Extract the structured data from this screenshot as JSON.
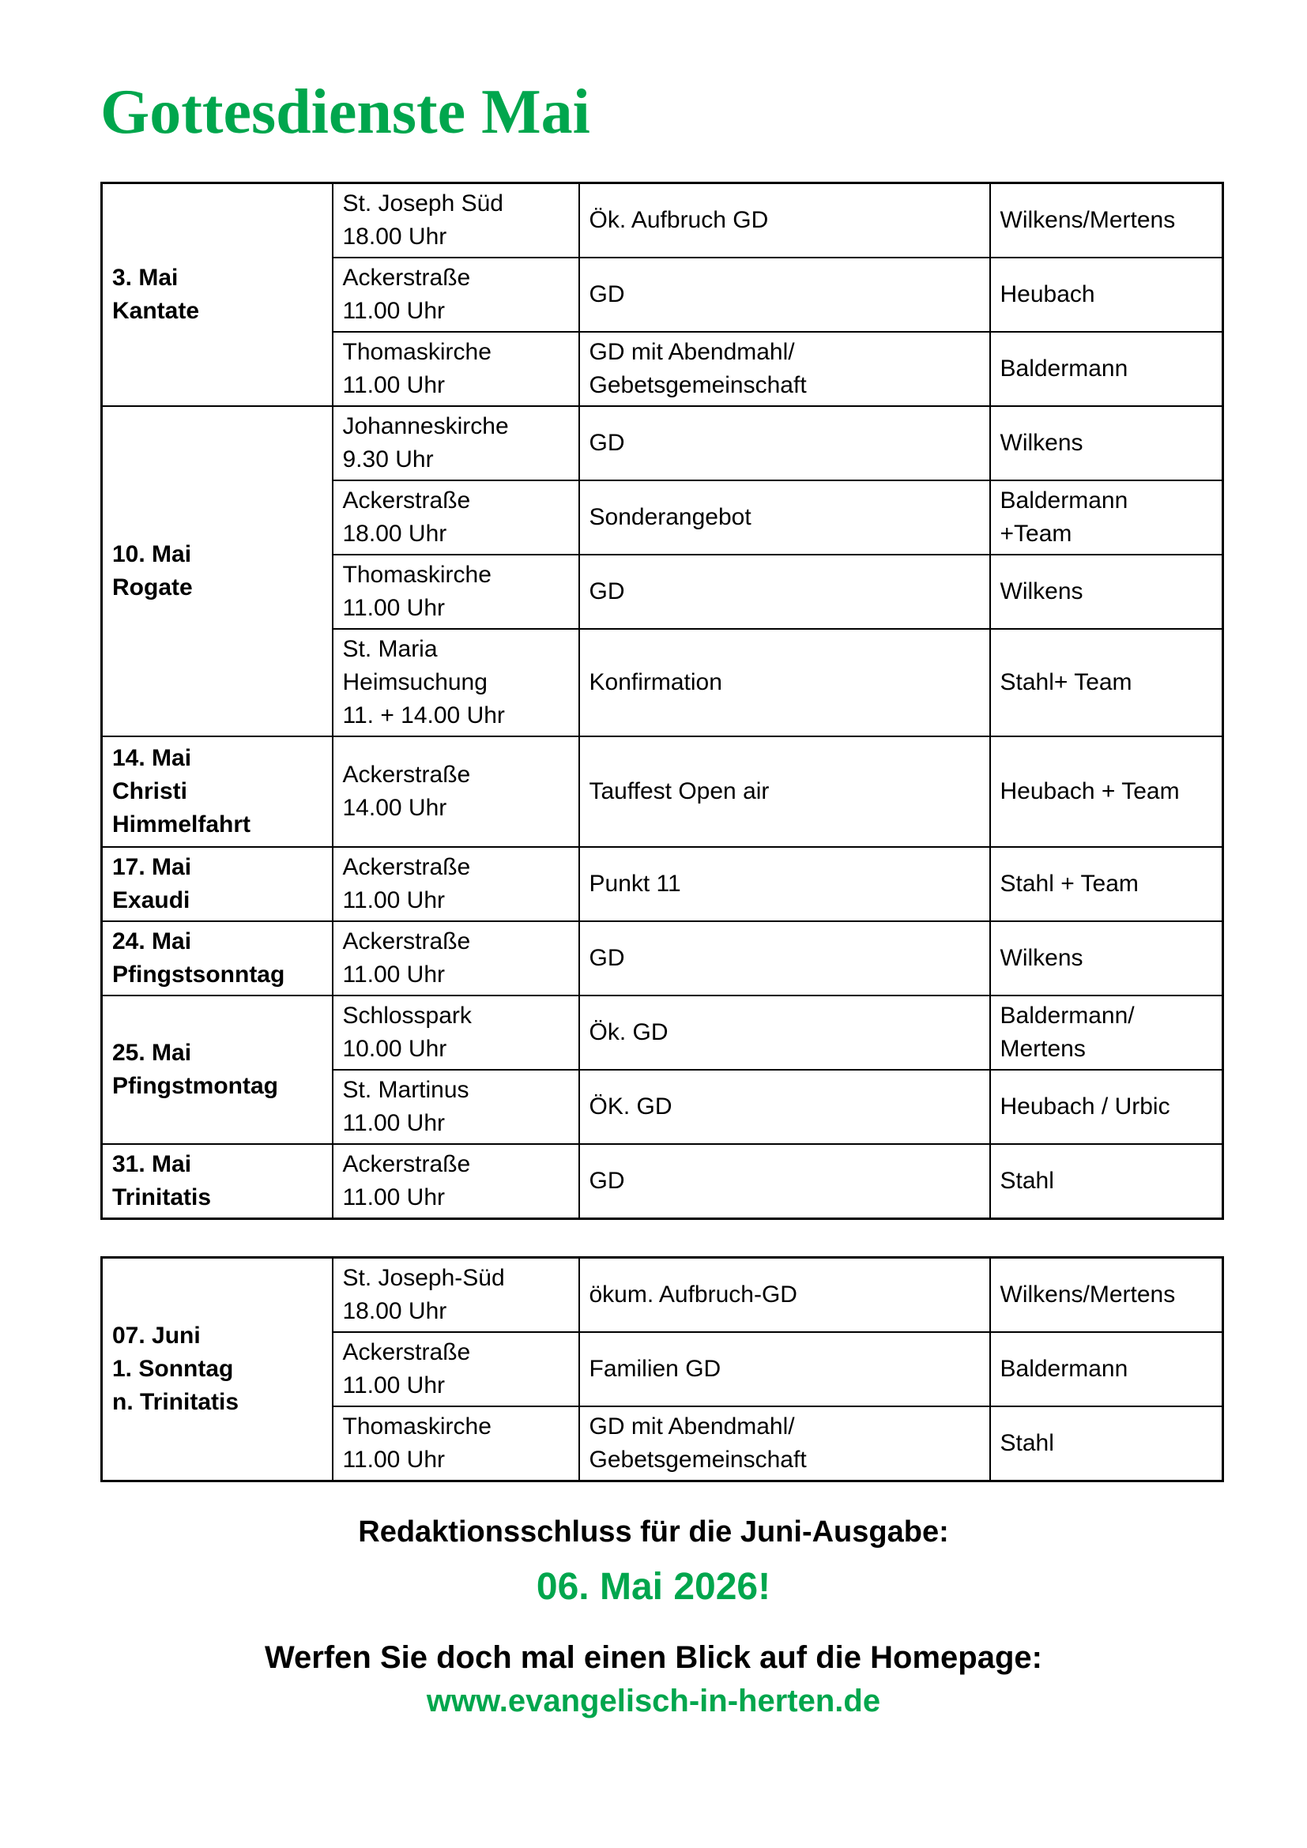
{
  "page": {
    "title": "Gottesdienste Mai",
    "colors": {
      "accent_green": "#00A64D",
      "row_shade_gray": "#D9D9D9",
      "border_black": "#000000"
    }
  },
  "tables": [
    {
      "groups": [
        {
          "date": "3. Mai\nKantate",
          "rows": [
            {
              "location": "St. Joseph Süd\n18.00 Uhr",
              "event": "Ök. Aufbruch GD",
              "leader": "Wilkens/Mertens",
              "shaded": false
            },
            {
              "location": "Ackerstraße\n11.00 Uhr",
              "event": "GD",
              "leader": "Heubach",
              "shaded": true
            },
            {
              "location": "Thomaskirche\n11.00 Uhr",
              "event": "GD mit Abendmahl/\nGebetsgemeinschaft",
              "leader": "Baldermann",
              "shaded": false
            }
          ]
        },
        {
          "date": "10. Mai\nRogate",
          "rows": [
            {
              "location": "Johanneskirche\n9.30 Uhr",
              "event": "GD",
              "leader": "Wilkens",
              "shaded": true
            },
            {
              "location": "Ackerstraße\n18.00 Uhr",
              "event": "Sonderangebot",
              "leader": "Baldermann\n+Team",
              "shaded": false
            },
            {
              "location": "Thomaskirche\n11.00 Uhr",
              "event": "GD",
              "leader": "Wilkens",
              "shaded": true
            },
            {
              "location": "St. Maria\nHeimsuchung\n11. + 14.00 Uhr",
              "event": "Konfirmation",
              "leader": "Stahl+ Team",
              "shaded": false
            }
          ]
        },
        {
          "date": "14. Mai\nChristi\nHimmelfahrt",
          "rows": [
            {
              "location": "Ackerstraße\n14.00 Uhr",
              "event": "Tauffest Open air",
              "leader": "Heubach + Team",
              "shaded": true
            }
          ]
        },
        {
          "date": "17. Mai\nExaudi",
          "rows": [
            {
              "location": "Ackerstraße\n11.00 Uhr",
              "event": "Punkt 11",
              "leader": "Stahl + Team",
              "shaded": false
            }
          ]
        },
        {
          "date": "24. Mai\nPfingstsonntag",
          "rows": [
            {
              "location": "Ackerstraße\n11.00 Uhr",
              "event": "GD",
              "leader": "Wilkens",
              "shaded": true
            }
          ]
        },
        {
          "date": "25. Mai\nPfingstmontag",
          "rows": [
            {
              "location": "Schlosspark\n10.00 Uhr",
              "event": "Ök. GD",
              "leader": "Baldermann/\nMertens",
              "shaded": false
            },
            {
              "location": "St. Martinus\n11.00 Uhr",
              "event": "ÖK. GD",
              "leader": "Heubach / Urbic",
              "shaded": true
            }
          ]
        },
        {
          "date": "31. Mai\nTrinitatis",
          "rows": [
            {
              "location": "Ackerstraße\n11.00 Uhr",
              "event": "GD",
              "leader": "Stahl",
              "shaded": false
            }
          ]
        }
      ]
    },
    {
      "groups": [
        {
          "date": "07. Juni\n1. Sonntag\nn. Trinitatis",
          "rows": [
            {
              "location": "St. Joseph-Süd\n18.00 Uhr",
              "event": "ökum. Aufbruch-GD",
              "leader": "Wilkens/Mertens",
              "shaded": true
            },
            {
              "location": "Ackerstraße\n11.00 Uhr",
              "event": "Familien GD",
              "leader": "Baldermann",
              "shaded": false
            },
            {
              "location": "Thomaskirche\n11.00 Uhr",
              "event": "GD mit Abendmahl/\nGebetsgemeinschaft",
              "leader": "Stahl",
              "shaded": true
            }
          ]
        }
      ]
    }
  ],
  "footer": {
    "deadline_label": "Redaktionsschluss für die Juni-Ausgabe:",
    "deadline_date": "06. Mai 2026!",
    "homepage_label": "Werfen Sie doch mal einen Blick auf die Homepage:",
    "homepage_url": "www.evangelisch-in-herten.de"
  }
}
